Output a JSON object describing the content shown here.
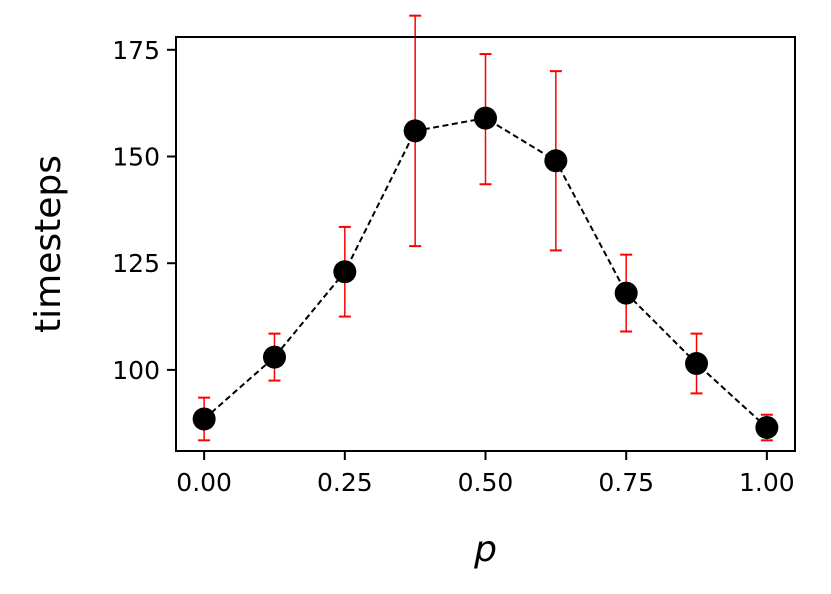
{
  "chart_data": {
    "type": "scatter",
    "xlabel": "p",
    "ylabel": "timesteps",
    "xlim": [
      -0.05,
      1.05
    ],
    "ylim": [
      81,
      178
    ],
    "xticks": [
      0.0,
      0.25,
      0.5,
      0.75,
      1.0
    ],
    "xtick_labels": [
      "0.00",
      "0.25",
      "0.50",
      "0.75",
      "1.00"
    ],
    "yticks": [
      100,
      125,
      150,
      175
    ],
    "ytick_labels": [
      "100",
      "125",
      "150",
      "175"
    ],
    "grid": false,
    "series": [
      {
        "marker_color": "#000000",
        "line_color": "#000000",
        "line_style": "dashed",
        "errorbar_color": "#ff0000",
        "x": [
          0.0,
          0.125,
          0.25,
          0.375,
          0.5,
          0.625,
          0.75,
          0.875,
          1.0
        ],
        "y": [
          88.5,
          103.0,
          123.0,
          156.0,
          159.0,
          149.0,
          118.0,
          101.5,
          86.5
        ],
        "yerr_low": [
          83.5,
          97.5,
          112.5,
          129.0,
          143.5,
          128.0,
          109.0,
          94.5,
          83.5
        ],
        "yerr_high": [
          93.5,
          108.5,
          133.5,
          183.0,
          174.0,
          170.0,
          127.0,
          108.5,
          89.5
        ]
      }
    ]
  }
}
